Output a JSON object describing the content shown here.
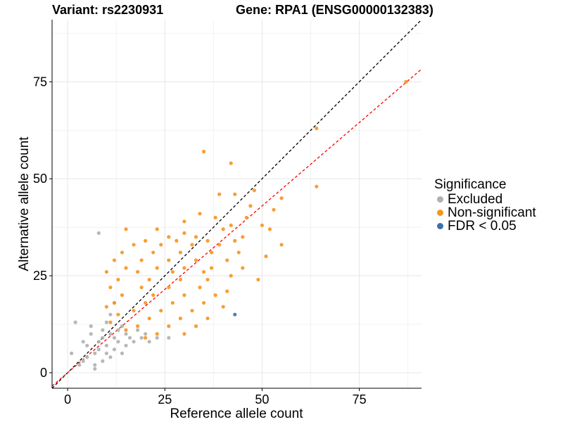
{
  "header": {
    "variant_label": "Variant: rs2230931",
    "gene_label": "Gene: RPA1 (ENSG00000132383)"
  },
  "chart_data": {
    "type": "scatter",
    "title": "Variant: rs2230931    Gene: RPA1 (ENSG00000132383)",
    "xlabel": "Reference allele count",
    "ylabel": "Alternative allele count",
    "xlim": [
      -4,
      91
    ],
    "ylim": [
      -4,
      91
    ],
    "xticks": [
      0,
      25,
      50,
      75
    ],
    "yticks": [
      0,
      25,
      50,
      75
    ],
    "grid": true,
    "legend": {
      "title": "Significance",
      "position": "right",
      "entries": [
        {
          "label": "Excluded",
          "color": "#b0b0b0"
        },
        {
          "label": "Non-significant",
          "color": "#f7941d"
        },
        {
          "label": "FDR < 0.05",
          "color": "#3d6fa8"
        }
      ]
    },
    "reference_lines": [
      {
        "name": "identity",
        "slope": 1.0,
        "intercept": 0,
        "color": "#000000",
        "style": "dashed"
      },
      {
        "name": "fit",
        "slope": 0.86,
        "intercept": 0,
        "color": "#ff0000",
        "style": "dashed"
      }
    ],
    "series": [
      {
        "name": "Excluded",
        "color": "#b0b0b0",
        "points": [
          [
            1,
            5
          ],
          [
            2,
            13
          ],
          [
            3,
            2
          ],
          [
            4,
            3
          ],
          [
            4,
            8
          ],
          [
            5,
            4
          ],
          [
            5,
            7
          ],
          [
            6,
            10
          ],
          [
            6,
            12
          ],
          [
            7,
            1
          ],
          [
            7,
            2
          ],
          [
            7,
            5
          ],
          [
            8,
            6
          ],
          [
            8,
            8
          ],
          [
            8,
            36
          ],
          [
            9,
            3
          ],
          [
            9,
            9
          ],
          [
            9,
            11
          ],
          [
            10,
            5
          ],
          [
            10,
            7
          ],
          [
            10,
            13
          ],
          [
            11,
            4
          ],
          [
            11,
            10
          ],
          [
            11,
            15
          ],
          [
            12,
            6
          ],
          [
            12,
            9
          ],
          [
            12,
            18
          ],
          [
            13,
            8
          ],
          [
            13,
            11
          ],
          [
            14,
            5
          ],
          [
            14,
            12
          ],
          [
            15,
            7
          ],
          [
            15,
            10
          ],
          [
            16,
            9
          ],
          [
            17,
            8
          ],
          [
            18,
            11
          ],
          [
            19,
            9
          ],
          [
            20,
            10
          ],
          [
            21,
            8
          ],
          [
            23,
            9
          ],
          [
            26,
            9
          ]
        ]
      },
      {
        "name": "Non-significant",
        "color": "#f7941d",
        "points": [
          [
            87,
            75
          ],
          [
            64,
            63
          ],
          [
            64,
            48
          ],
          [
            35,
            57
          ],
          [
            42,
            54
          ],
          [
            39,
            46
          ],
          [
            43,
            46
          ],
          [
            48,
            47
          ],
          [
            55,
            45
          ],
          [
            47,
            43
          ],
          [
            53,
            42
          ],
          [
            34,
            41
          ],
          [
            38,
            40
          ],
          [
            46,
            40
          ],
          [
            30,
            39
          ],
          [
            42,
            38
          ],
          [
            50,
            38
          ],
          [
            15,
            37
          ],
          [
            23,
            37
          ],
          [
            30,
            36
          ],
          [
            40,
            37
          ],
          [
            52,
            37
          ],
          [
            26,
            35
          ],
          [
            33,
            35
          ],
          [
            45,
            35
          ],
          [
            20,
            34
          ],
          [
            28,
            34
          ],
          [
            36,
            34
          ],
          [
            43,
            34
          ],
          [
            17,
            33
          ],
          [
            24,
            33
          ],
          [
            32,
            33
          ],
          [
            39,
            33
          ],
          [
            55,
            33
          ],
          [
            14,
            31
          ],
          [
            22,
            31
          ],
          [
            29,
            31
          ],
          [
            37,
            31
          ],
          [
            44,
            31
          ],
          [
            51,
            30
          ],
          [
            12,
            29
          ],
          [
            19,
            29
          ],
          [
            26,
            29
          ],
          [
            33,
            29
          ],
          [
            41,
            29
          ],
          [
            15,
            27
          ],
          [
            23,
            27
          ],
          [
            30,
            27
          ],
          [
            37,
            27
          ],
          [
            45,
            27
          ],
          [
            10,
            26
          ],
          [
            18,
            26
          ],
          [
            27,
            26
          ],
          [
            35,
            26
          ],
          [
            42,
            25
          ],
          [
            13,
            24
          ],
          [
            21,
            24
          ],
          [
            29,
            24
          ],
          [
            36,
            24
          ],
          [
            49,
            24
          ],
          [
            11,
            22
          ],
          [
            19,
            22
          ],
          [
            26,
            22
          ],
          [
            34,
            22
          ],
          [
            41,
            21
          ],
          [
            14,
            20
          ],
          [
            22,
            20
          ],
          [
            30,
            20
          ],
          [
            38,
            20
          ],
          [
            12,
            18
          ],
          [
            20,
            18
          ],
          [
            27,
            18
          ],
          [
            35,
            18
          ],
          [
            10,
            17
          ],
          [
            17,
            16
          ],
          [
            24,
            16
          ],
          [
            32,
            16
          ],
          [
            40,
            17
          ],
          [
            13,
            15
          ],
          [
            21,
            14
          ],
          [
            29,
            14
          ],
          [
            36,
            14
          ],
          [
            11,
            13
          ],
          [
            18,
            12
          ],
          [
            26,
            12
          ],
          [
            33,
            12
          ],
          [
            15,
            11
          ],
          [
            23,
            10
          ],
          [
            30,
            10
          ],
          [
            20,
            9
          ]
        ]
      },
      {
        "name": "FDR < 0.05",
        "color": "#3d6fa8",
        "points": [
          [
            43,
            15
          ]
        ]
      }
    ]
  }
}
